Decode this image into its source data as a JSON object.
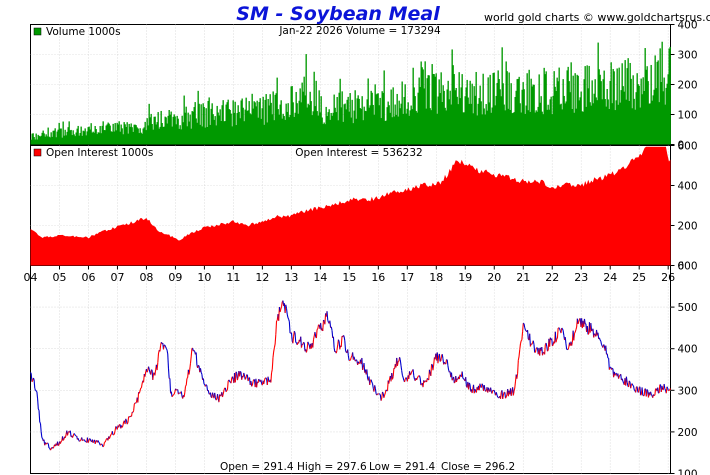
{
  "header": {
    "title": "SM  -  Soybean Meal",
    "credit": "world gold charts © www.goldchartsrus.com"
  },
  "colors": {
    "title": "#0b14d8",
    "volume": "#009900",
    "open_interest": "#ff0000",
    "price_up": "#ff0000",
    "price_down": "#0000cc",
    "grid": "#c8c8c8",
    "border": "#000000"
  },
  "chart_data": [
    {
      "type": "bar",
      "panel": "volume",
      "legend": "Volume  1000s",
      "header_text": "Jan-22  2026   Volume = 173294",
      "x_range": [
        2004.0,
        2026.08
      ],
      "ylim": [
        0,
        400
      ],
      "yticks": [
        "0",
        "100",
        "200",
        "300",
        "400"
      ],
      "anchors_x": [
        2004,
        2005,
        2006,
        2007,
        2007.9,
        2008.1,
        2009,
        2010,
        2011,
        2012,
        2013,
        2013.6,
        2014,
        2015,
        2016,
        2017,
        2017.5,
        2018,
        2019,
        2020,
        2021,
        2022,
        2023,
        2024,
        2025,
        2025.6,
        2026
      ],
      "anchors_y": [
        25,
        40,
        50,
        55,
        45,
        85,
        80,
        100,
        105,
        115,
        135,
        190,
        120,
        125,
        130,
        155,
        210,
        175,
        165,
        170,
        175,
        180,
        195,
        190,
        205,
        260,
        230
      ]
    },
    {
      "type": "area",
      "panel": "open_interest",
      "legend": "Open Interest  1000s",
      "header_text": "Open Interest = 536232",
      "x_range": [
        2004.0,
        2026.08
      ],
      "ylim": [
        0,
        600
      ],
      "yticks": [
        "0",
        "200",
        "400",
        "600"
      ],
      "x": [
        2004.0,
        2004.4,
        2005.0,
        2005.5,
        2006.0,
        2006.5,
        2007.0,
        2007.5,
        2008.0,
        2008.4,
        2008.8,
        2009.1,
        2009.5,
        2010.0,
        2010.5,
        2011.0,
        2011.5,
        2012.0,
        2012.5,
        2013.0,
        2013.5,
        2014.0,
        2014.5,
        2015.0,
        2015.5,
        2016.0,
        2016.5,
        2017.0,
        2017.5,
        2018.0,
        2018.3,
        2018.7,
        2019.0,
        2019.5,
        2020.0,
        2020.5,
        2021.0,
        2021.5,
        2022.0,
        2022.5,
        2023.0,
        2023.5,
        2024.0,
        2024.5,
        2025.0,
        2025.3,
        2025.6,
        2025.8,
        2026.0
      ],
      "y": [
        180,
        140,
        150,
        145,
        140,
        170,
        195,
        215,
        240,
        175,
        150,
        125,
        160,
        190,
        205,
        220,
        200,
        220,
        245,
        250,
        275,
        290,
        305,
        330,
        325,
        340,
        365,
        380,
        400,
        400,
        440,
        515,
        510,
        475,
        450,
        440,
        420,
        425,
        395,
        410,
        400,
        430,
        455,
        485,
        550,
        610,
        650,
        675,
        520
      ]
    },
    {
      "type": "line",
      "panel": "price",
      "x_range": [
        2004.0,
        2026.08
      ],
      "ylim": [
        100,
        600
      ],
      "yticks": [
        "100",
        "200",
        "300",
        "400",
        "500",
        "600"
      ],
      "year_labels": [
        "04",
        "05",
        "06",
        "07",
        "08",
        "09",
        "10",
        "11",
        "12",
        "13",
        "14",
        "15",
        "16",
        "17",
        "18",
        "19",
        "20",
        "21",
        "22",
        "23",
        "24",
        "25",
        "26"
      ],
      "x": [
        2004.0,
        2004.2,
        2004.4,
        2004.7,
        2005.0,
        2005.3,
        2005.6,
        2006.0,
        2006.5,
        2007.0,
        2007.4,
        2007.7,
        2008.0,
        2008.3,
        2008.5,
        2008.7,
        2008.85,
        2009.0,
        2009.3,
        2009.6,
        2009.9,
        2010.2,
        2010.5,
        2010.9,
        2011.2,
        2011.6,
        2012.0,
        2012.3,
        2012.5,
        2012.7,
        2013.0,
        2013.3,
        2013.6,
        2014.0,
        2014.3,
        2014.5,
        2014.8,
        2015.0,
        2015.4,
        2015.8,
        2016.1,
        2016.4,
        2016.7,
        2016.9,
        2017.2,
        2017.6,
        2018.0,
        2018.3,
        2018.6,
        2018.9,
        2019.2,
        2019.6,
        2020.0,
        2020.4,
        2020.7,
        2021.0,
        2021.3,
        2021.5,
        2021.8,
        2022.0,
        2022.3,
        2022.6,
        2022.9,
        2023.2,
        2023.5,
        2023.8,
        2024.0,
        2024.3,
        2024.6,
        2024.9,
        2025.2,
        2025.5,
        2025.8,
        2026.0
      ],
      "y": [
        340,
        300,
        180,
        160,
        175,
        200,
        185,
        180,
        170,
        210,
        230,
        280,
        350,
        330,
        420,
        400,
        290,
        300,
        280,
        400,
        340,
        290,
        280,
        320,
        340,
        320,
        315,
        330,
        460,
        520,
        430,
        420,
        400,
        450,
        480,
        400,
        420,
        380,
        370,
        310,
        280,
        320,
        380,
        330,
        340,
        310,
        380,
        375,
        320,
        340,
        300,
        310,
        290,
        290,
        300,
        450,
        410,
        390,
        400,
        420,
        440,
        400,
        470,
        450,
        440,
        410,
        350,
        330,
        320,
        300,
        295,
        290,
        310,
        296
      ]
    }
  ],
  "ohlc": {
    "open": "Open = 291.4",
    "high": "High = 297.6",
    "low": "Low = 291.4",
    "close": "Close = 296.2"
  }
}
